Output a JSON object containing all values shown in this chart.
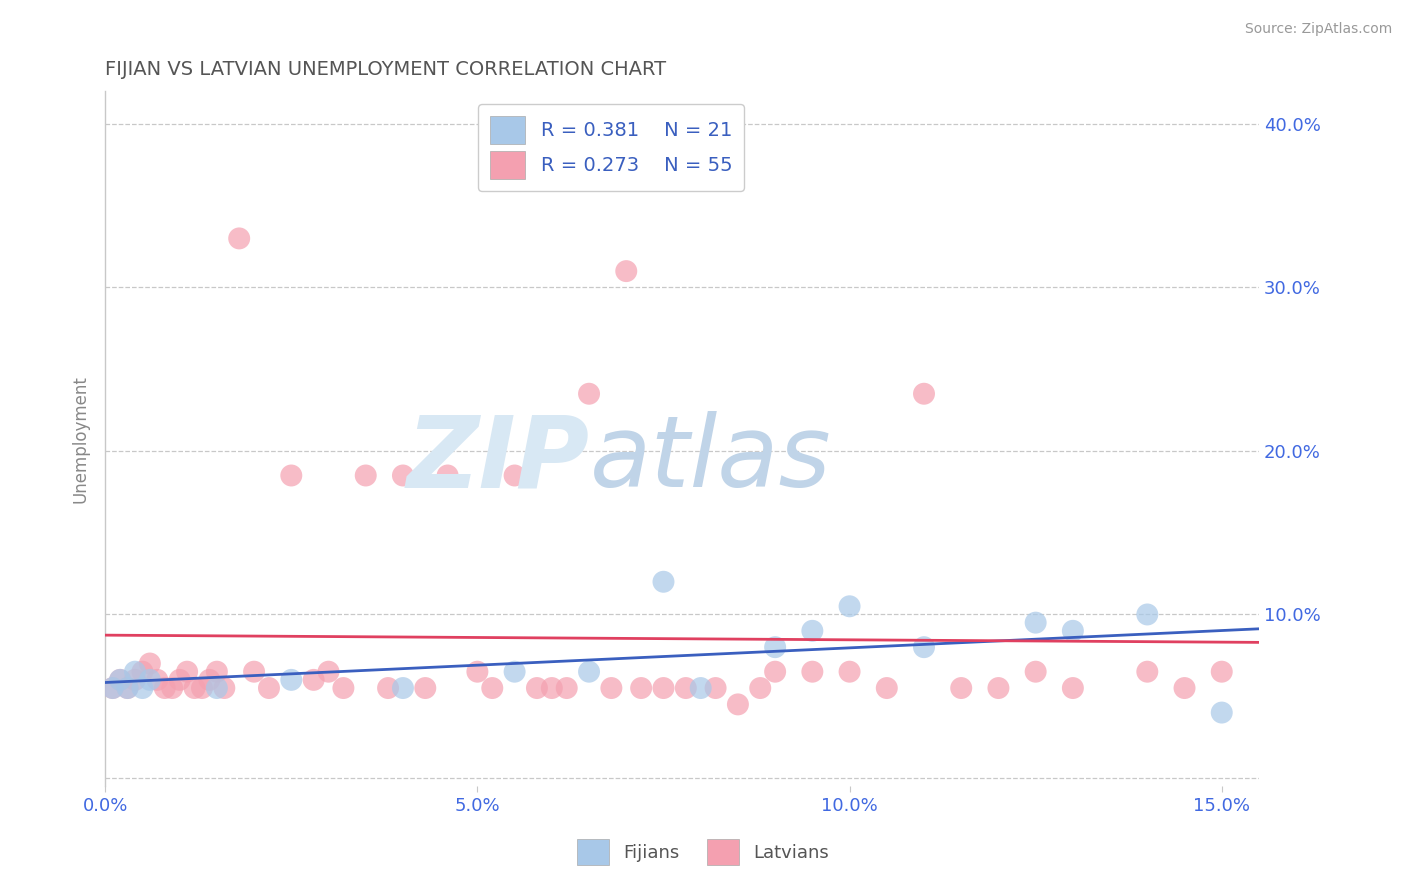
{
  "title": "FIJIAN VS LATVIAN UNEMPLOYMENT CORRELATION CHART",
  "source": "Source: ZipAtlas.com",
  "ylabel": "Unemployment",
  "xlim": [
    0.0,
    0.155
  ],
  "ylim": [
    -0.005,
    0.42
  ],
  "xticks": [
    0.0,
    0.05,
    0.1,
    0.15
  ],
  "xtick_labels": [
    "0.0%",
    "5.0%",
    "10.0%",
    "15.0%"
  ],
  "yticks": [
    0.0,
    0.1,
    0.2,
    0.3,
    0.4
  ],
  "ytick_labels": [
    "",
    "10.0%",
    "20.0%",
    "30.0%",
    "40.0%"
  ],
  "fijians_color": "#a8c8e8",
  "latvians_color": "#f4a0b0",
  "fijian_line_color": "#3a5fbf",
  "latvian_line_color": "#e04060",
  "legend_text_color": "#3a5fbf",
  "fijians_R": "0.381",
  "fijians_N": "21",
  "latvians_R": "0.273",
  "latvians_N": "55",
  "background_color": "#ffffff",
  "grid_color": "#c8c8c8",
  "title_color": "#555555",
  "axis_tick_color": "#4169E1",
  "watermark_zip_color": "#d8e8f4",
  "watermark_atlas_color": "#c0d4e8",
  "fijians_x": [
    0.001,
    0.002,
    0.003,
    0.004,
    0.005,
    0.006,
    0.015,
    0.025,
    0.04,
    0.055,
    0.065,
    0.075,
    0.08,
    0.09,
    0.095,
    0.1,
    0.11,
    0.125,
    0.13,
    0.14,
    0.15
  ],
  "fijians_y": [
    0.055,
    0.06,
    0.055,
    0.065,
    0.055,
    0.06,
    0.055,
    0.06,
    0.055,
    0.065,
    0.065,
    0.12,
    0.055,
    0.08,
    0.09,
    0.105,
    0.08,
    0.095,
    0.09,
    0.1,
    0.04
  ],
  "latvians_x": [
    0.001,
    0.002,
    0.003,
    0.004,
    0.005,
    0.006,
    0.007,
    0.008,
    0.009,
    0.01,
    0.011,
    0.012,
    0.013,
    0.014,
    0.015,
    0.016,
    0.018,
    0.02,
    0.022,
    0.025,
    0.028,
    0.03,
    0.032,
    0.035,
    0.038,
    0.04,
    0.043,
    0.046,
    0.05,
    0.052,
    0.055,
    0.058,
    0.06,
    0.062,
    0.065,
    0.068,
    0.07,
    0.072,
    0.075,
    0.078,
    0.082,
    0.085,
    0.088,
    0.09,
    0.095,
    0.1,
    0.105,
    0.11,
    0.115,
    0.12,
    0.125,
    0.13,
    0.14,
    0.145,
    0.15
  ],
  "latvians_y": [
    0.055,
    0.06,
    0.055,
    0.06,
    0.065,
    0.07,
    0.06,
    0.055,
    0.055,
    0.06,
    0.065,
    0.055,
    0.055,
    0.06,
    0.065,
    0.055,
    0.33,
    0.065,
    0.055,
    0.185,
    0.06,
    0.065,
    0.055,
    0.185,
    0.055,
    0.185,
    0.055,
    0.185,
    0.065,
    0.055,
    0.185,
    0.055,
    0.055,
    0.055,
    0.235,
    0.055,
    0.31,
    0.055,
    0.055,
    0.055,
    0.055,
    0.045,
    0.055,
    0.065,
    0.065,
    0.065,
    0.055,
    0.235,
    0.055,
    0.055,
    0.065,
    0.055,
    0.065,
    0.055,
    0.065
  ]
}
